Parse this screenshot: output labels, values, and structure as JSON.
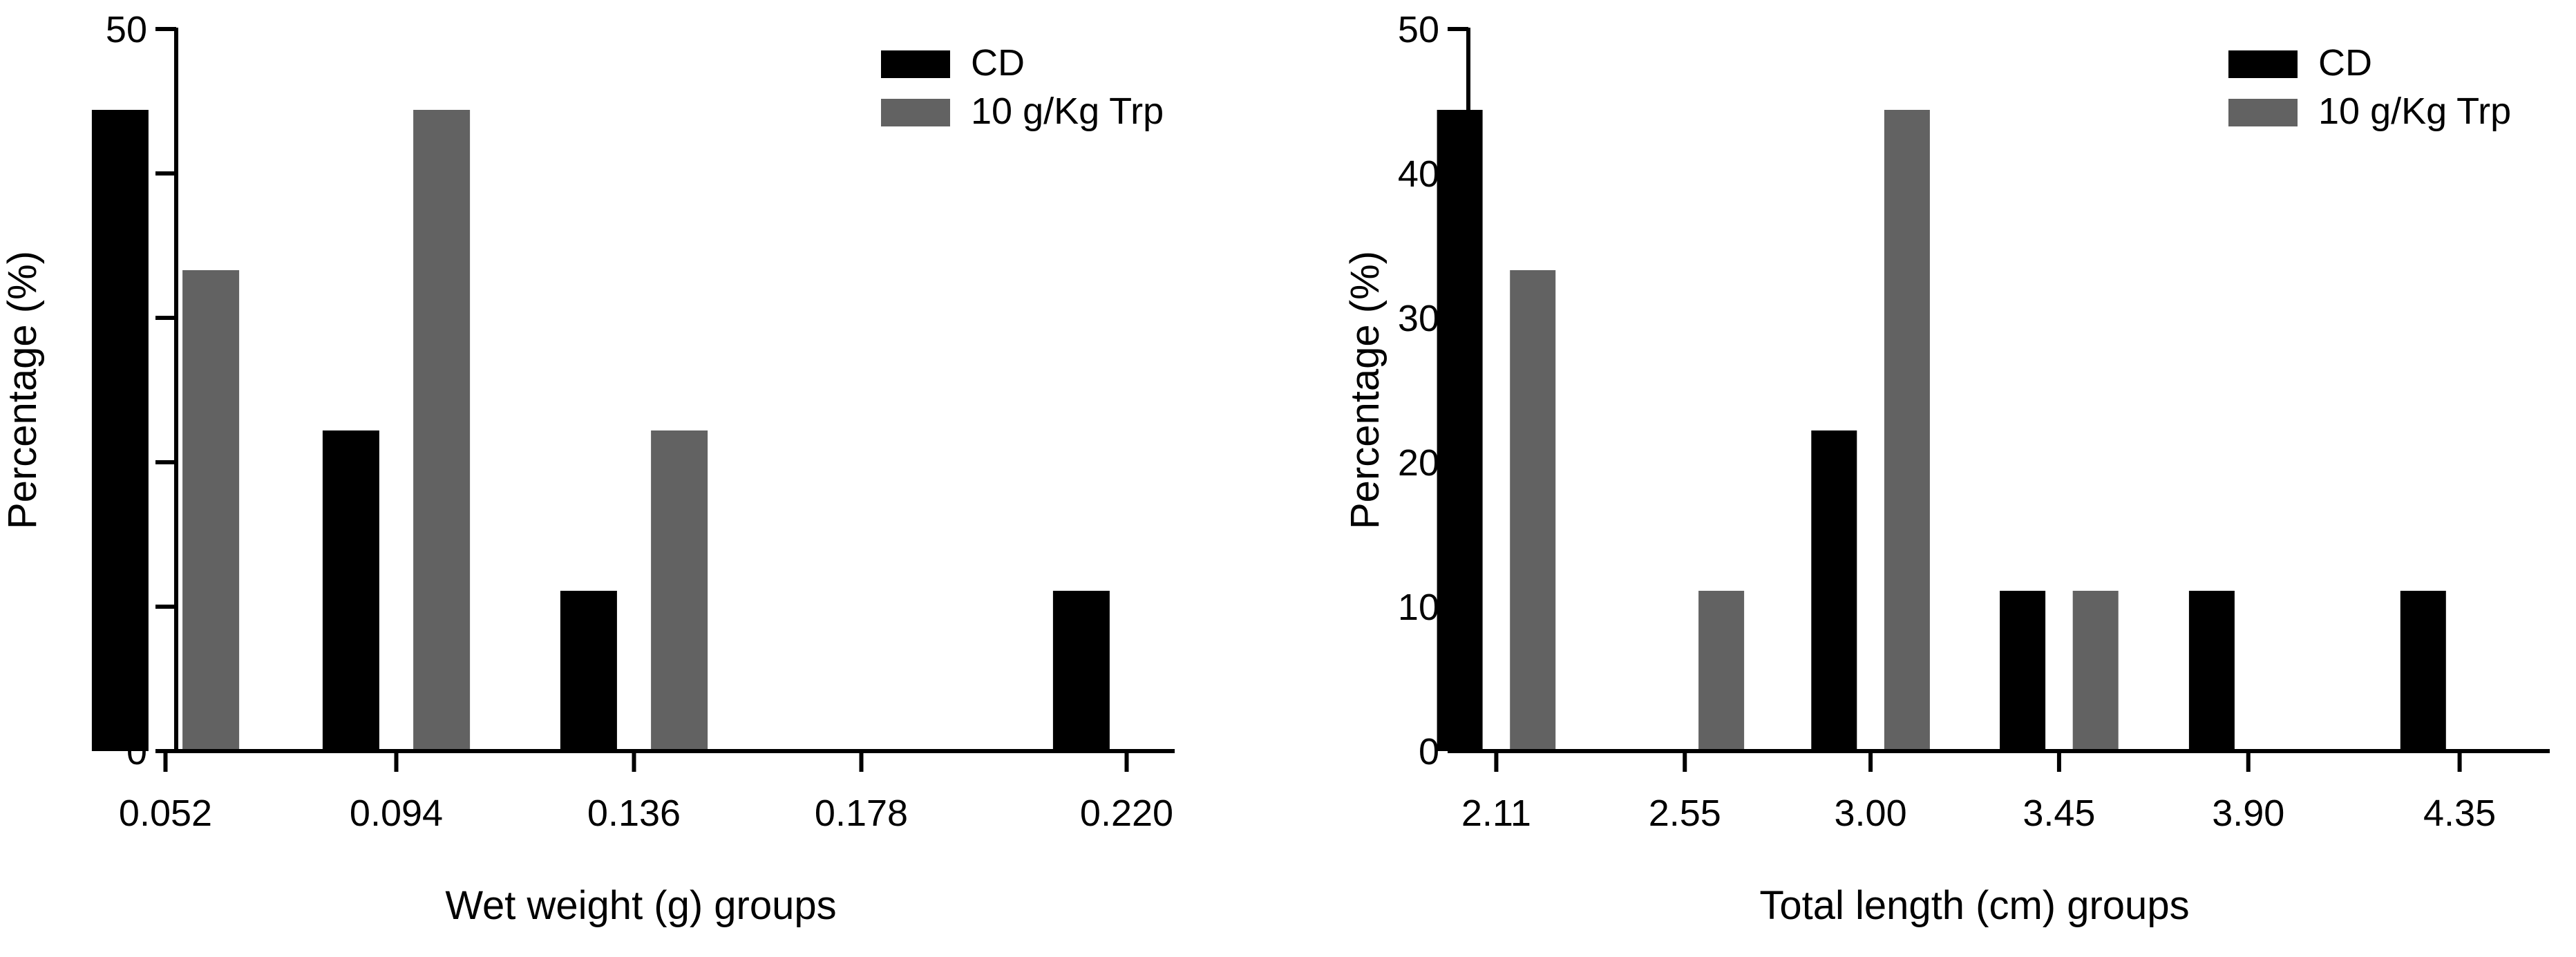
{
  "colors": {
    "cd": "#000000",
    "trp": "#626262",
    "axis": "#000000",
    "background": "#ffffff"
  },
  "chart_data": [
    {
      "type": "bar",
      "title": "",
      "xlabel": "Wet weight (g) groups",
      "ylabel": "Percentage (%)",
      "ylim": [
        0,
        50
      ],
      "yticks": [
        "0",
        "10",
        "20",
        "30",
        "40",
        "50"
      ],
      "categories": [
        "0.052",
        "0.094",
        "0.136",
        "0.178",
        "0.220"
      ],
      "series": [
        {
          "name": "CD",
          "color": "#000000",
          "values": [
            44.4,
            22.2,
            11.1,
            0,
            11.1
          ]
        },
        {
          "name": "10 g/Kg Trp",
          "color": "#626262",
          "values": [
            33.3,
            44.4,
            22.2,
            0,
            0
          ]
        }
      ],
      "legend": "top-right",
      "grid": false
    },
    {
      "type": "bar",
      "title": "",
      "xlabel": "Total length (cm) groups",
      "ylabel": "Percentage (%)",
      "ylim": [
        0,
        50
      ],
      "yticks": [
        "0",
        "10",
        "20",
        "30",
        "40",
        "50"
      ],
      "categories": [
        "2.11",
        "2.55",
        "3.00",
        "3.45",
        "3.90",
        "4.35"
      ],
      "series": [
        {
          "name": "CD",
          "color": "#000000",
          "values": [
            44.4,
            0,
            22.2,
            11.1,
            11.1,
            11.1
          ]
        },
        {
          "name": "10 g/Kg Trp",
          "color": "#626262",
          "values": [
            33.3,
            11.1,
            44.4,
            11.1,
            0,
            0
          ]
        }
      ],
      "legend": "top-right",
      "grid": false
    }
  ]
}
